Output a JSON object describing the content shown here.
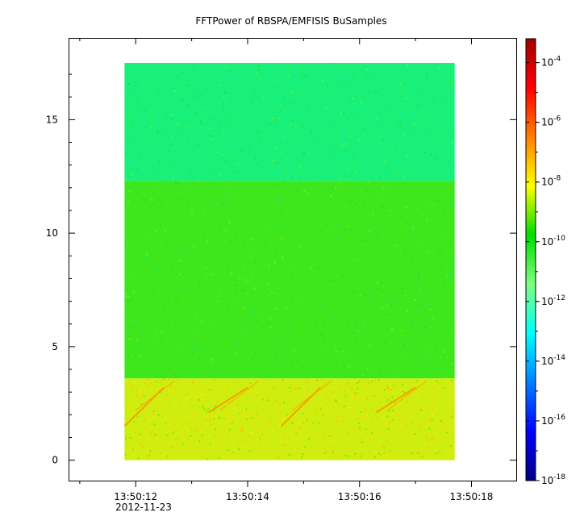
{
  "chart_data": {
    "type": "heatmap",
    "title": "FFTPower of RBSPA/EMFISIS  BuSamples",
    "xlabel": "",
    "ylabel": "",
    "date_label": "2012-11-23",
    "x_tick_labels": [
      "13:50:12",
      "13:50:14",
      "13:50:16",
      "13:50:18"
    ],
    "x_tick_values": [
      12,
      14,
      16,
      18
    ],
    "x_minor_ticks": [
      11,
      13,
      15,
      17
    ],
    "xlim": [
      10.8,
      18.8
    ],
    "data_x_range": [
      11.8,
      17.7
    ],
    "y_ticks": [
      0,
      5,
      10,
      15
    ],
    "ylim": [
      -0.9,
      18.6
    ],
    "data_y_range": [
      0,
      17.5
    ],
    "colorbar": {
      "scale": "log",
      "range_exponent": [
        -18,
        -3.2
      ],
      "tick_base": "10",
      "tick_exponents": [
        "-18",
        "-16",
        "-14",
        "-12",
        "-10",
        "-8",
        "-6",
        "-4"
      ],
      "colormap": [
        "#00007f",
        "#0000ff",
        "#007fff",
        "#00ffff",
        "#7fff7f",
        "#00dd00",
        "#ffff00",
        "#ff7f00",
        "#ff0000",
        "#9f0000"
      ]
    },
    "bands": [
      {
        "y_from": 12.3,
        "y_to": 17.5,
        "log_power": -12.4,
        "color": "#18f07a"
      },
      {
        "y_from": 3.6,
        "y_to": 12.3,
        "log_power": -10.3,
        "color": "#3ee61c"
      },
      {
        "y_from": 0,
        "y_to": 3.6,
        "log_power": -8.8,
        "color": "#cfee10"
      }
    ],
    "chorus_x_starts": [
      11.8,
      13.3,
      14.6,
      16.3
    ]
  }
}
